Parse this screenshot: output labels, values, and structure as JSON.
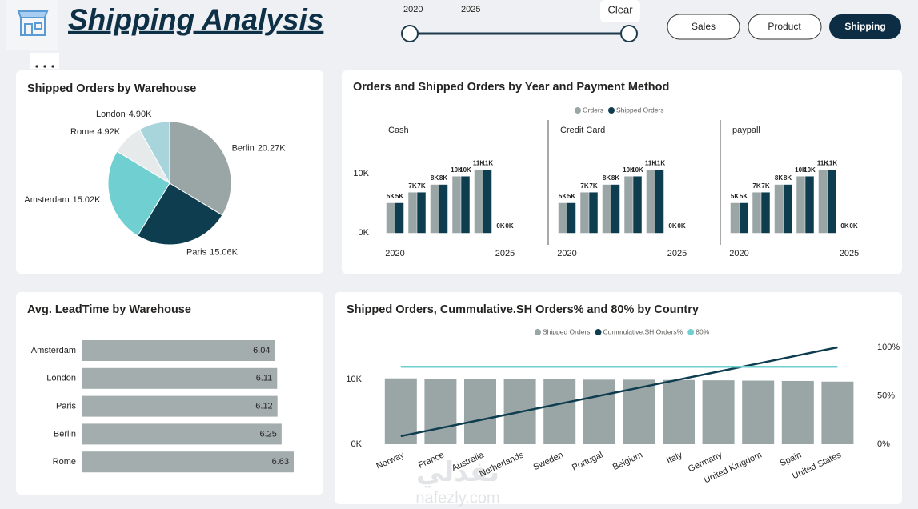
{
  "header": {
    "title": "Shipping Analysis"
  },
  "slider": {
    "start": "2020",
    "end": "2025",
    "clear": "Clear"
  },
  "nav": [
    "Sales",
    "Product",
    "Shipping"
  ],
  "chart_data": [
    {
      "type": "pie",
      "title": "Shipped Orders by Warehouse",
      "categories": [
        "Berlin",
        "Paris",
        "Amsterdam",
        "Rome",
        "London"
      ],
      "values": [
        20270,
        15060,
        15020,
        4920,
        4900
      ],
      "value_labels": [
        "20.27K",
        "15.06K",
        "15.02K",
        "4.92K",
        "4.90K"
      ],
      "colors": [
        "#9aa5a6",
        "#0d3d4f",
        "#6fcfd1",
        "#e6eaeb",
        "#a8d5dc"
      ]
    },
    {
      "type": "grouped-bar-panels",
      "title": "Orders and Shipped Orders by Year and Payment Method",
      "series": [
        {
          "name": "Orders",
          "color": "#9aa5a6"
        },
        {
          "name": "Shipped Orders",
          "color": "#0d3d4f"
        }
      ],
      "categories": [
        "2020",
        null,
        null,
        null,
        null,
        "2025"
      ],
      "ylim": [
        0,
        15000
      ],
      "yticks": [
        {
          "value": 0,
          "label": "0K"
        },
        {
          "value": 10000,
          "label": "10K"
        }
      ],
      "panels": [
        {
          "name": "Cash",
          "values": [
            [
              5000,
              6800,
              8100,
              9500,
              10600,
              0
            ],
            [
              5000,
              6800,
              8100,
              9500,
              10600,
              0
            ]
          ],
          "value_labels": [
            [
              "5K",
              "7K",
              "8K",
              "10K",
              "11K",
              "0K"
            ],
            [
              "5K",
              "7K",
              "8K",
              "10K",
              "11K",
              "0K"
            ]
          ]
        },
        {
          "name": "Credit Card",
          "values": [
            [
              5000,
              6800,
              8100,
              9500,
              10600,
              0
            ],
            [
              5000,
              6800,
              8100,
              9500,
              10600,
              0
            ]
          ],
          "value_labels": [
            [
              "5K",
              "7K",
              "8K",
              "10K",
              "11K",
              "0K"
            ],
            [
              "5K",
              "7K",
              "8K",
              "10K",
              "11K",
              "0K"
            ]
          ]
        },
        {
          "name": "paypall",
          "values": [
            [
              5000,
              6800,
              8100,
              9500,
              10600,
              0
            ],
            [
              5000,
              6800,
              8100,
              9500,
              10600,
              0
            ]
          ],
          "value_labels": [
            [
              "5K",
              "7K",
              "8K",
              "10K",
              "11K",
              "0K"
            ],
            [
              "5K",
              "7K",
              "8K",
              "10K",
              "11K",
              "0K"
            ]
          ]
        }
      ]
    },
    {
      "type": "hbar",
      "title": "Avg. LeadTime by Warehouse",
      "categories": [
        "Amsterdam",
        "London",
        "Paris",
        "Berlin",
        "Rome"
      ],
      "values": [
        6.04,
        6.11,
        6.12,
        6.25,
        6.63
      ],
      "color": "#a3adad"
    },
    {
      "type": "combo",
      "title": "Shipped Orders, Cummulative.SH Orders% and 80% by Country",
      "categories": [
        "Norway",
        "France",
        "Australia",
        "Netherlands",
        "Sweden",
        "Portugal",
        "Belgium",
        "Italy",
        "Germany",
        "United Kingdom",
        "Spain",
        "United States"
      ],
      "series": [
        {
          "name": "Shipped Orders",
          "color": "#9aa5a6",
          "kind": "bar",
          "values": [
            10200,
            10150,
            10100,
            10050,
            10050,
            10000,
            10000,
            9950,
            9900,
            9850,
            9800,
            9700
          ]
        },
        {
          "name": "Cummulative.SH Orders%",
          "color": "#0d3d4f",
          "kind": "line",
          "axis": "y2",
          "values": [
            8.3,
            16.7,
            25,
            33.3,
            41.7,
            50,
            58.3,
            66.7,
            75,
            83.3,
            91.7,
            100
          ]
        },
        {
          "name": "80%",
          "color": "#6fcfd1",
          "kind": "line",
          "axis": "y2",
          "values": [
            80,
            80,
            80,
            80,
            80,
            80,
            80,
            80,
            80,
            80,
            80,
            80
          ]
        }
      ],
      "ylim": [
        0,
        15000
      ],
      "yticks": [
        {
          "value": 0,
          "label": "0K"
        },
        {
          "value": 10000,
          "label": "10K"
        }
      ],
      "y2lim": [
        0,
        100
      ],
      "y2ticks": [
        {
          "value": 0,
          "label": "0%"
        },
        {
          "value": 50,
          "label": "50%"
        },
        {
          "value": 100,
          "label": "100%"
        }
      ]
    }
  ],
  "watermark": {
    "arabic": "نفذلي",
    "latin": "nafezly.com"
  }
}
